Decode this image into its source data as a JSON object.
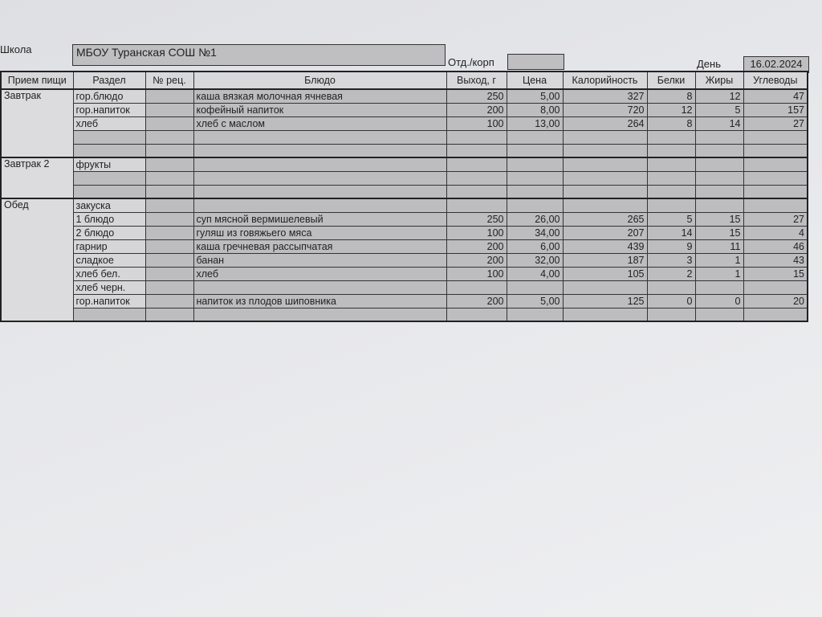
{
  "header": {
    "school_label": "Школа",
    "school_value": "МБОУ Туранская СОШ №1",
    "dept_label": "Отд./корп",
    "dept_value": "",
    "day_label": "День",
    "day_value": "16.02.2024"
  },
  "columns": [
    "Прием пищи",
    "Раздел",
    "№ рец.",
    "Блюдо",
    "Выход, г",
    "Цена",
    "Калорийность",
    "Белки",
    "Жиры",
    "Углеводы"
  ],
  "groups": [
    {
      "meal": "Завтрак",
      "rows": [
        [
          "гор.блюдо",
          "",
          "каша вязкая молочная ячневая",
          "250",
          "5,00",
          "327",
          "8",
          "12",
          "47"
        ],
        [
          "гор.напиток",
          "",
          "кофейный напиток",
          "200",
          "8,00",
          "720",
          "12",
          "5",
          "157"
        ],
        [
          "хлеб",
          "",
          "хлеб с маслом",
          "100",
          "13,00",
          "264",
          "8",
          "14",
          "27"
        ],
        [
          "",
          "",
          "",
          "",
          "",
          "",
          "",
          "",
          ""
        ],
        [
          "",
          "",
          "",
          "",
          "",
          "",
          "",
          "",
          ""
        ]
      ]
    },
    {
      "meal": "Завтрак 2",
      "rows": [
        [
          "фрукты",
          "",
          "",
          "",
          "",
          "",
          "",
          "",
          ""
        ],
        [
          "",
          "",
          "",
          "",
          "",
          "",
          "",
          "",
          ""
        ],
        [
          "",
          "",
          "",
          "",
          "",
          "",
          "",
          "",
          ""
        ]
      ]
    },
    {
      "meal": "Обед",
      "rows": [
        [
          "закуска",
          "",
          "",
          "",
          "",
          "",
          "",
          "",
          ""
        ],
        [
          "1 блюдо",
          "",
          "суп мясной вермишелевый",
          "250",
          "26,00",
          "265",
          "5",
          "15",
          "27"
        ],
        [
          "2 блюдо",
          "",
          "гуляш из говяжьего мяса",
          "100",
          "34,00",
          "207",
          "14",
          "15",
          "4"
        ],
        [
          "гарнир",
          "",
          "каша гречневая рассыпчатая",
          "200",
          "6,00",
          "439",
          "9",
          "11",
          "46"
        ],
        [
          "сладкое",
          "",
          "банан",
          "200",
          "32,00",
          "187",
          "3",
          "1",
          "43"
        ],
        [
          "хлеб бел.",
          "",
          "хлеб",
          "100",
          "4,00",
          "105",
          "2",
          "1",
          "15"
        ],
        [
          "хлеб черн.",
          "",
          "",
          "",
          "",
          "",
          "",
          "",
          ""
        ],
        [
          "гор.напиток",
          "",
          "напиток из плодов шиповника",
          "200",
          "5,00",
          "125",
          "0",
          "0",
          "20"
        ],
        [
          "",
          "",
          "",
          "",
          "",
          "",
          "",
          "",
          ""
        ]
      ]
    }
  ]
}
